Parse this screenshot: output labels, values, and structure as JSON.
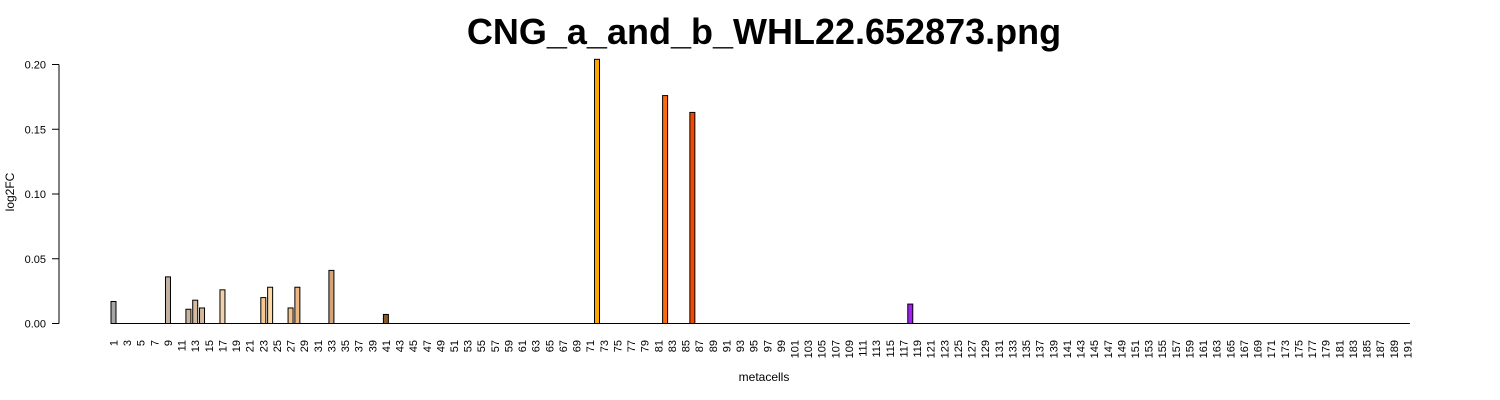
{
  "chart_data": {
    "type": "bar",
    "title": "CNG_a_and_b_WHL22.652873.png",
    "xlabel": "metacells",
    "ylabel": "log2FC",
    "ylim": [
      0,
      0.2
    ],
    "yticks": [
      "0.00",
      "0.05",
      "0.10",
      "0.15",
      "0.20"
    ],
    "n_categories": 191,
    "x_tick_labels_every": 2,
    "grid": false,
    "legend": "none",
    "bars": [
      {
        "metacell": 1,
        "value": 0.017,
        "color": "#a6a6a6"
      },
      {
        "metacell": 9,
        "value": 0.036,
        "color": "#c2b2a2"
      },
      {
        "metacell": 12,
        "value": 0.011,
        "color": "#c8b29a"
      },
      {
        "metacell": 13,
        "value": 0.018,
        "color": "#d4bb9c"
      },
      {
        "metacell": 14,
        "value": 0.012,
        "color": "#d2b898"
      },
      {
        "metacell": 17,
        "value": 0.026,
        "color": "#f2d2ad"
      },
      {
        "metacell": 23,
        "value": 0.02,
        "color": "#f6c890"
      },
      {
        "metacell": 24,
        "value": 0.028,
        "color": "#fbd8a5"
      },
      {
        "metacell": 27,
        "value": 0.012,
        "color": "#f2c28e"
      },
      {
        "metacell": 28,
        "value": 0.028,
        "color": "#eeb680"
      },
      {
        "metacell": 33,
        "value": 0.041,
        "color": "#d3a47a"
      },
      {
        "metacell": 41,
        "value": 0.007,
        "color": "#8b5a2b"
      },
      {
        "metacell": 72,
        "value": 0.204,
        "color": "#ffa500"
      },
      {
        "metacell": 82,
        "value": 0.176,
        "color": "#ff6a10"
      },
      {
        "metacell": 86,
        "value": 0.163,
        "color": "#f04a00"
      },
      {
        "metacell": 118,
        "value": 0.015,
        "color": "#a020f0"
      }
    ]
  }
}
